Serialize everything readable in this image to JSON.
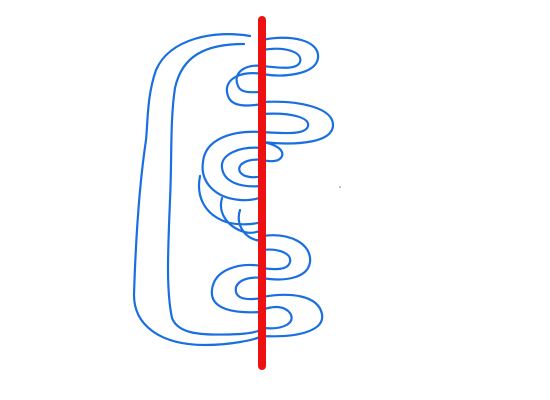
{
  "drawing": {
    "background_color": "#ffffff",
    "curve_color": "#1a6fe0",
    "line_color": "#ee1111"
  }
}
